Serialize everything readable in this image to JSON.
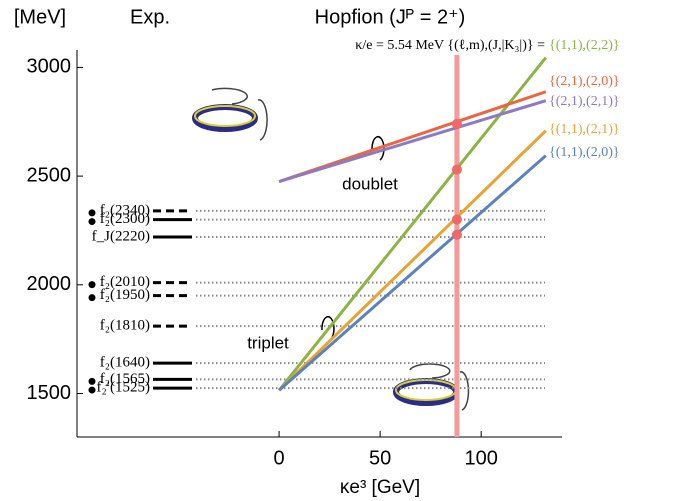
{
  "chart_data": {
    "type": "line",
    "title": "Hopfion (Jᴾ = 2⁺)",
    "subtitle": "κ/e = 5.54 MeV  {(ℓ,m),(J,|K₃|)} =",
    "y_label": "[MeV]",
    "x_label": "κe³ [GeV]",
    "exp_label": "Exp.",
    "annotations": [
      "doublet",
      "triplet"
    ],
    "xlim": [
      -100,
      140
    ],
    "ylim": [
      1300,
      3080
    ],
    "xticks": [
      0,
      50,
      100
    ],
    "yticks": [
      1500,
      2000,
      2500,
      3000
    ],
    "series": [
      {
        "name": "{(1,1),(2,2)}",
        "color": "#8db443",
        "x": [
          0,
          132
        ],
        "values": [
          1515,
          3045
        ]
      },
      {
        "name": "{(2,1),(2,0)}",
        "color": "#ea6540",
        "x": [
          0,
          132
        ],
        "values": [
          2475,
          2888
        ]
      },
      {
        "name": "{(2,1),(2,1)}",
        "color": "#8b7bc4",
        "x": [
          0,
          132
        ],
        "values": [
          2475,
          2847
        ]
      },
      {
        "name": "{(1,1),(2,1)}",
        "color": "#eaa232",
        "x": [
          0,
          132
        ],
        "values": [
          1515,
          2709
        ]
      },
      {
        "name": "{(1,1),(2,0)}",
        "color": "#5b82c0",
        "x": [
          0,
          132
        ],
        "values": [
          1515,
          2594
        ]
      }
    ],
    "cut": {
      "x": 88,
      "color": "#f49a9a",
      "values": [
        2740,
        2530,
        2300,
        2230
      ],
      "marker_color": "#f06868"
    },
    "levels": [
      {
        "label": "f₂(2340)",
        "value": 2340,
        "style": "dashed",
        "bullet": true
      },
      {
        "label": "f₂(2300)",
        "value": 2300,
        "style": "solid",
        "bullet": true
      },
      {
        "label": "f_J(2220)",
        "value": 2220,
        "style": "solid",
        "bullet": false
      },
      {
        "label": "f₂(2010)",
        "value": 2010,
        "style": "dashed",
        "bullet": true
      },
      {
        "label": "f₂(1950)",
        "value": 1950,
        "style": "dashed",
        "bullet": true
      },
      {
        "label": "f₂(1810)",
        "value": 1810,
        "style": "dashed",
        "bullet": false
      },
      {
        "label": "f₂(1640)",
        "value": 1640,
        "style": "solid",
        "bullet": false
      },
      {
        "label": "f₂(1565)",
        "value": 1565,
        "style": "solid",
        "bullet": true
      },
      {
        "label": "f₂′(1525)",
        "value": 1525,
        "style": "solid",
        "bullet": true
      }
    ]
  }
}
